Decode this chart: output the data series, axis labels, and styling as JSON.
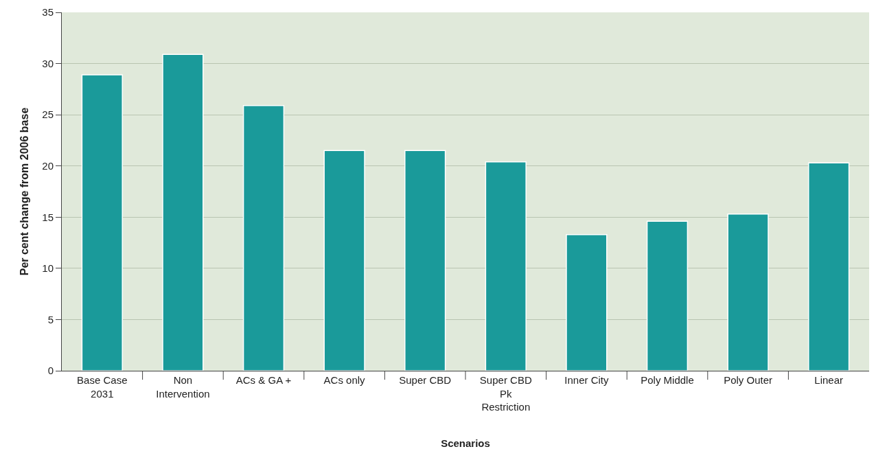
{
  "chart_data": {
    "type": "bar",
    "xlabel": "Scenarios",
    "ylabel": "Per cent change from 2006 base",
    "categories": [
      "Base Case\n2031",
      "Non\nIntervention",
      "ACs & GA +",
      "ACs only",
      "Super CBD",
      "Super CBD\nPk\nRestriction",
      "Inner City",
      "Poly Middle",
      "Poly Outer",
      "Linear"
    ],
    "values": [
      28.9,
      30.9,
      25.9,
      21.5,
      21.5,
      20.4,
      13.3,
      14.6,
      15.3,
      20.3
    ],
    "color": "#1a9a9a",
    "ylim": [
      0,
      35
    ],
    "yticks": [
      0,
      5,
      10,
      15,
      20,
      25,
      30,
      35
    ],
    "grid": "y"
  }
}
